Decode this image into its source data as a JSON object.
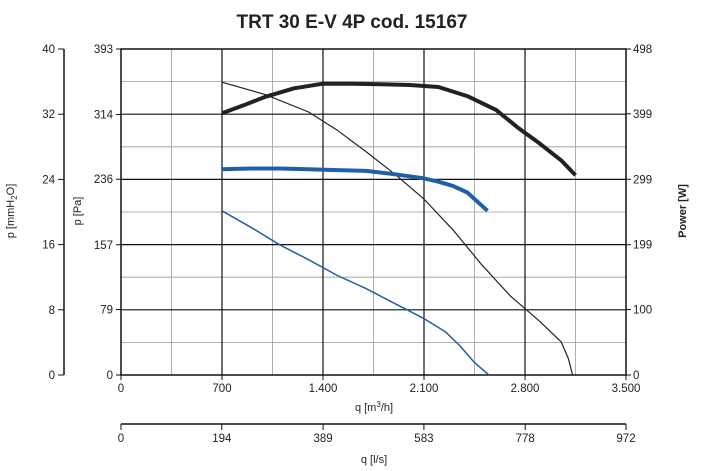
{
  "chart_data": {
    "type": "line",
    "title": "TRT 30 E-V 4P cod. 15167",
    "grid": true,
    "x_axis": {
      "label": "q [m³/h]",
      "min": 0,
      "max": 3500,
      "ticks": [
        {
          "v": 0,
          "t": "0"
        },
        {
          "v": 700,
          "t": "700"
        },
        {
          "v": 1400,
          "t": "1.400"
        },
        {
          "v": 2100,
          "t": "2.100"
        },
        {
          "v": 2800,
          "t": "2.800"
        },
        {
          "v": 3500,
          "t": "3.500"
        }
      ]
    },
    "x2_axis": {
      "label": "q [l/s]",
      "min": 0,
      "max": 972,
      "ticks": [
        {
          "v": 0,
          "t": "0"
        },
        {
          "v": 194,
          "t": "194"
        },
        {
          "v": 389,
          "t": "389"
        },
        {
          "v": 583,
          "t": "583"
        },
        {
          "v": 778,
          "t": "778"
        },
        {
          "v": 972,
          "t": "972"
        }
      ]
    },
    "y_axis": {
      "label": "p [Pa]",
      "min": 0,
      "max": 393,
      "ticks": [
        {
          "v": 0,
          "t": "0"
        },
        {
          "v": 79,
          "t": "79"
        },
        {
          "v": 157,
          "t": "157"
        },
        {
          "v": 236,
          "t": "236"
        },
        {
          "v": 314,
          "t": "314"
        },
        {
          "v": 393,
          "t": "393"
        }
      ]
    },
    "y_left_axis": {
      "label_main": "p  [mmH",
      "label_sub": "2",
      "label_end": "O]",
      "min": 0,
      "max": 40,
      "ticks": [
        {
          "v": 0,
          "t": "0"
        },
        {
          "v": 8,
          "t": "8"
        },
        {
          "v": 16,
          "t": "16"
        },
        {
          "v": 24,
          "t": "24"
        },
        {
          "v": 32,
          "t": "32"
        },
        {
          "v": 40,
          "t": "40"
        }
      ]
    },
    "y2_axis": {
      "label": "Power [W]",
      "min": 0,
      "max": 498,
      "ticks": [
        {
          "v": 0,
          "t": "0"
        },
        {
          "v": 100,
          "t": "100"
        },
        {
          "v": 199,
          "t": "199"
        },
        {
          "v": 299,
          "t": "299"
        },
        {
          "v": 399,
          "t": "399"
        },
        {
          "v": 498,
          "t": "498"
        }
      ]
    },
    "series": [
      {
        "axis": "power",
        "color": "#222222",
        "width": 4,
        "x": [
          700,
          850,
          1000,
          1200,
          1400,
          1600,
          1800,
          2000,
          2200,
          2400,
          2600,
          2750,
          2900,
          3050,
          3150
        ],
        "y": [
          400,
          412,
          425,
          438,
          445,
          445,
          444,
          443,
          440,
          426,
          405,
          378,
          354,
          328,
          305
        ]
      },
      {
        "axis": "p",
        "color": "#222222",
        "width": 1.2,
        "x": [
          700,
          1000,
          1300,
          1500,
          1700,
          1900,
          2100,
          2300,
          2500,
          2700,
          2900,
          3050,
          3100,
          3130
        ],
        "y": [
          353,
          338,
          317,
          295,
          269,
          242,
          212,
          175,
          133,
          95,
          65,
          40,
          20,
          0
        ]
      },
      {
        "axis": "p",
        "color": "#1f5fa8",
        "width": 4,
        "x": [
          700,
          900,
          1100,
          1300,
          1500,
          1700,
          1900,
          2100,
          2200,
          2300,
          2400,
          2540
        ],
        "y": [
          248,
          249,
          249,
          248,
          247,
          246,
          242,
          237,
          233,
          228,
          220,
          198
        ]
      },
      {
        "axis": "p",
        "color": "#1f5fa8",
        "width": 1.5,
        "x": [
          700,
          900,
          1100,
          1300,
          1500,
          1700,
          1900,
          2100,
          2250,
          2350,
          2450,
          2550
        ],
        "y": [
          198,
          178,
          157,
          139,
          120,
          104,
          86,
          68,
          52,
          35,
          15,
          0
        ]
      }
    ]
  }
}
